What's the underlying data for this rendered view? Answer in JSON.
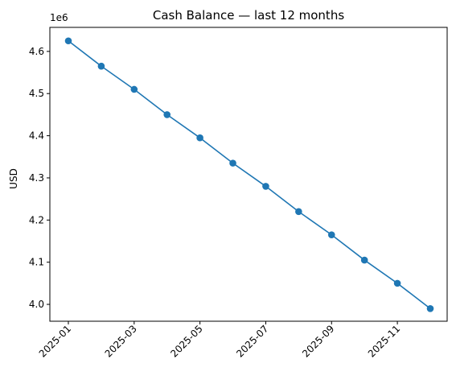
{
  "chart_data": {
    "type": "line",
    "title": "Cash Balance — last 12 months",
    "xlabel": "",
    "ylabel": "USD",
    "y_offset_label": "1e6",
    "x": [
      "2025-01",
      "2025-02",
      "2025-03",
      "2025-04",
      "2025-05",
      "2025-06",
      "2025-07",
      "2025-08",
      "2025-09",
      "2025-10",
      "2025-11",
      "2025-12"
    ],
    "series": [
      {
        "values": [
          4625000,
          4565000,
          4510000,
          4450000,
          4395000,
          4335000,
          4280000,
          4220000,
          4165000,
          4105000,
          4050000,
          3990000
        ]
      }
    ],
    "x_ticks": [
      "2025-01",
      "2025-03",
      "2025-05",
      "2025-07",
      "2025-09",
      "2025-11"
    ],
    "y_ticks": [
      4.0,
      4.1,
      4.2,
      4.3,
      4.4,
      4.5,
      4.6
    ],
    "y_tick_labels": [
      "4.0",
      "4.1",
      "4.2",
      "4.3",
      "4.4",
      "4.5",
      "4.6"
    ],
    "ylim": [
      3960000,
      4657000
    ],
    "grid": false,
    "legend": "none",
    "colors": {
      "line": "#1f77b4"
    }
  }
}
